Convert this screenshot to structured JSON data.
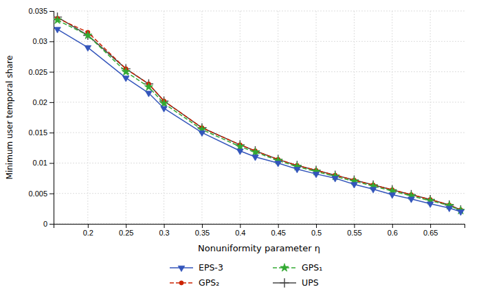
{
  "chart_data": {
    "type": "line",
    "x_label": "Nonuniformity parameter η",
    "y_label": "Minimum user temporal share",
    "x": [
      0.16,
      0.2,
      0.25,
      0.28,
      0.3,
      0.35,
      0.4,
      0.42,
      0.45,
      0.475,
      0.5,
      0.525,
      0.55,
      0.575,
      0.6,
      0.625,
      0.65,
      0.675,
      0.69
    ],
    "series": [
      {
        "name": "UPS",
        "color": "#444444",
        "line_style": "solid",
        "marker": "plus",
        "values": [
          0.034,
          0.031,
          0.0255,
          0.023,
          0.0202,
          0.0158,
          0.013,
          0.012,
          0.0106,
          0.0096,
          0.0088,
          0.008,
          0.0072,
          0.0064,
          0.0056,
          0.0048,
          0.004,
          0.0031,
          0.0023
        ]
      },
      {
        "name": "GPS₂",
        "color": "#cc2200",
        "line_style": "dashed",
        "marker": "circle",
        "values": [
          0.0338,
          0.0315,
          0.0255,
          0.023,
          0.0202,
          0.0158,
          0.013,
          0.012,
          0.0106,
          0.0096,
          0.0088,
          0.008,
          0.0072,
          0.0064,
          0.0056,
          0.0048,
          0.004,
          0.0031,
          0.0023
        ]
      },
      {
        "name": "GPS₁",
        "color": "#33aa33",
        "line_style": "dashed",
        "marker": "star",
        "values": [
          0.0335,
          0.031,
          0.025,
          0.0225,
          0.0198,
          0.0155,
          0.0127,
          0.0118,
          0.0104,
          0.0094,
          0.0086,
          0.0078,
          0.007,
          0.0062,
          0.0054,
          0.0046,
          0.0038,
          0.003,
          0.0022
        ]
      },
      {
        "name": "EPS-3",
        "color": "#3355bb",
        "line_style": "solid",
        "marker": "triangle-down",
        "values": [
          0.032,
          0.029,
          0.024,
          0.0215,
          0.019,
          0.015,
          0.012,
          0.011,
          0.01,
          0.009,
          0.0082,
          0.0075,
          0.0065,
          0.0057,
          0.0048,
          0.0041,
          0.0033,
          0.0026,
          0.002
        ]
      }
    ],
    "xlim": [
      0.155,
      0.695
    ],
    "ylim": [
      0,
      0.035
    ],
    "xticks": [
      0.2,
      0.25,
      0.3,
      0.35,
      0.4,
      0.45,
      0.5,
      0.55,
      0.6,
      0.65
    ],
    "yticks": [
      0,
      0.005,
      0.01,
      0.015,
      0.02,
      0.025,
      0.03,
      0.035
    ],
    "grid": true,
    "legend": "bottom"
  }
}
